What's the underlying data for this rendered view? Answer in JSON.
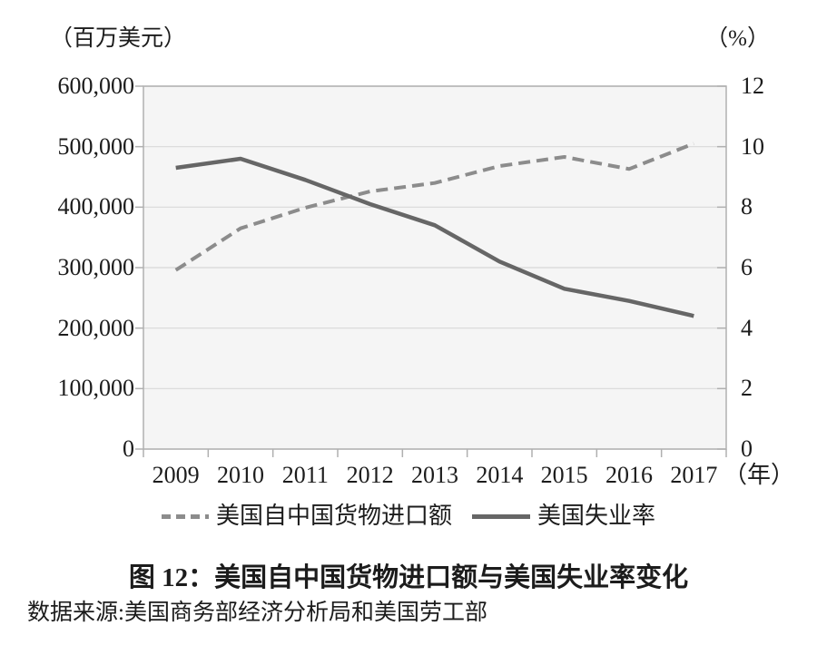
{
  "chart_data": {
    "type": "line",
    "title": "图 12：美国自中国货物进口额与美国失业率变化",
    "source": "数据来源:美国商务部经济分析局和美国劳工部",
    "x_axis": {
      "categories": [
        "2009",
        "2010",
        "2011",
        "2012",
        "2013",
        "2014",
        "2015",
        "2016",
        "2017"
      ],
      "unit_label": "（年）"
    },
    "left_axis": {
      "unit_label": "（百万美元）",
      "min": 0,
      "max": 600000,
      "tick_labels": [
        "600,000",
        "500,000",
        "400,000",
        "300,000",
        "200,000",
        "100,000",
        "0"
      ],
      "tick_values": [
        600000,
        500000,
        400000,
        300000,
        200000,
        100000,
        0
      ]
    },
    "right_axis": {
      "unit_label": "（%）",
      "min": 0,
      "max": 12,
      "tick_labels": [
        "12",
        "10",
        "8",
        "6",
        "4",
        "2",
        "0"
      ],
      "tick_values": [
        12,
        10,
        8,
        6,
        4,
        2,
        0
      ]
    },
    "series": [
      {
        "name": "美国自中国货物进口额",
        "axis": "left",
        "line_style": "dashed",
        "color": "#8c8c8c",
        "values": [
          296000,
          365000,
          399000,
          426000,
          440000,
          468000,
          483000,
          463000,
          505000
        ]
      },
      {
        "name": "美国失业率",
        "axis": "right",
        "line_style": "solid",
        "color": "#666666",
        "values": [
          9.3,
          9.6,
          8.9,
          8.1,
          7.4,
          6.2,
          5.3,
          4.9,
          4.4
        ]
      }
    ],
    "grid": true,
    "legend_position": "bottom",
    "colors": {
      "axis": "#b0b0b0",
      "gridline": "#d8d8d8",
      "plot_background": "#f5f5f5",
      "text": "#1c1c1c",
      "page_background": "#ffffff"
    }
  }
}
